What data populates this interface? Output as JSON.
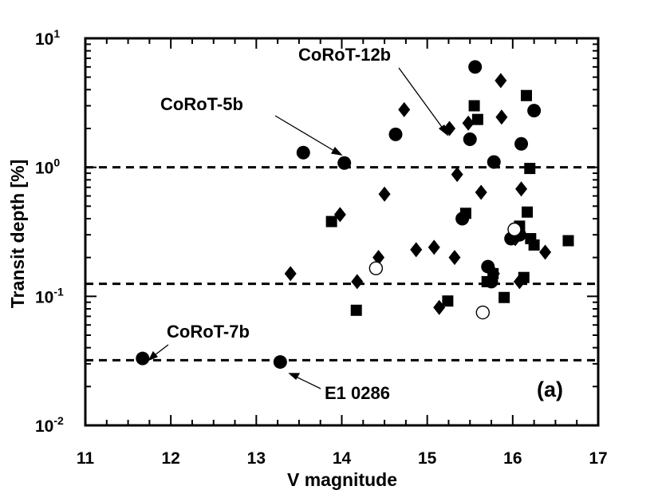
{
  "chart_data": {
    "type": "scatter",
    "xlabel": "V magnitude",
    "ylabel": "Transit depth [%]",
    "xlim": [
      11,
      17
    ],
    "ylim": [
      0.01,
      10
    ],
    "yscale": "log",
    "x_ticks": [
      "11",
      "12",
      "13",
      "14",
      "15",
      "16",
      "17"
    ],
    "y_ticks": [
      {
        "value": 10,
        "base": "10",
        "exp": "1"
      },
      {
        "value": 1,
        "base": "10",
        "exp": "0"
      },
      {
        "value": 0.1,
        "base": "10",
        "exp": "-1"
      },
      {
        "value": 0.01,
        "base": "10",
        "exp": "-2"
      }
    ],
    "panel_label": "(a)",
    "reference_lines": [
      1.0,
      0.125,
      0.032
    ],
    "series": [
      {
        "name": "filled circles",
        "marker": "circle-filled",
        "points": [
          [
            11.67,
            0.033
          ],
          [
            13.28,
            0.031
          ],
          [
            13.55,
            1.3
          ],
          [
            14.03,
            1.08
          ],
          [
            14.63,
            1.8
          ],
          [
            15.41,
            0.4
          ],
          [
            15.5,
            1.65
          ],
          [
            15.56,
            6.0
          ],
          [
            15.71,
            0.17
          ],
          [
            15.75,
            0.13
          ],
          [
            15.78,
            1.1
          ],
          [
            15.98,
            0.28
          ],
          [
            16.1,
            1.52
          ],
          [
            16.25,
            2.75
          ],
          [
            16.08,
            0.3
          ]
        ]
      },
      {
        "name": "filled squares",
        "marker": "square-filled",
        "points": [
          [
            13.88,
            0.38
          ],
          [
            14.17,
            0.078
          ],
          [
            15.24,
            0.092
          ],
          [
            15.45,
            0.44
          ],
          [
            15.55,
            3.0
          ],
          [
            15.59,
            2.35
          ],
          [
            15.7,
            0.13
          ],
          [
            15.77,
            0.15
          ],
          [
            15.9,
            0.098
          ],
          [
            16.08,
            0.35
          ],
          [
            16.13,
            0.14
          ],
          [
            16.16,
            3.6
          ],
          [
            16.17,
            0.45
          ],
          [
            16.2,
            0.98
          ],
          [
            16.21,
            0.28
          ],
          [
            16.25,
            0.25
          ],
          [
            16.65,
            0.27
          ]
        ]
      },
      {
        "name": "filled diamonds",
        "marker": "diamond-filled",
        "points": [
          [
            13.4,
            0.15
          ],
          [
            13.98,
            0.43
          ],
          [
            14.18,
            0.13
          ],
          [
            14.43,
            0.2
          ],
          [
            14.5,
            0.62
          ],
          [
            14.73,
            2.8
          ],
          [
            14.87,
            0.23
          ],
          [
            15.08,
            0.24
          ],
          [
            15.14,
            0.082
          ],
          [
            15.26,
            2.0
          ],
          [
            15.32,
            0.2
          ],
          [
            15.35,
            0.88
          ],
          [
            15.48,
            2.2
          ],
          [
            15.63,
            0.64
          ],
          [
            15.78,
            0.15
          ],
          [
            15.86,
            4.7
          ],
          [
            15.87,
            2.45
          ],
          [
            16.03,
            0.28
          ],
          [
            16.08,
            0.13
          ],
          [
            16.1,
            0.68
          ],
          [
            16.38,
            0.22
          ]
        ]
      },
      {
        "name": "open circles",
        "marker": "circle-open",
        "points": [
          [
            14.4,
            0.165
          ],
          [
            15.65,
            0.075
          ],
          [
            16.02,
            0.33
          ]
        ]
      }
    ],
    "annotations": [
      {
        "text": "CoRoT-12b",
        "point": [
          15.52,
          1.7
        ]
      },
      {
        "text": "CoRoT-5b",
        "point": [
          14.0,
          1.1
        ]
      },
      {
        "text": "CoRoT-7b",
        "point": [
          11.72,
          0.033
        ]
      },
      {
        "text": "E1 0286",
        "point": [
          13.38,
          0.031
        ]
      }
    ]
  }
}
